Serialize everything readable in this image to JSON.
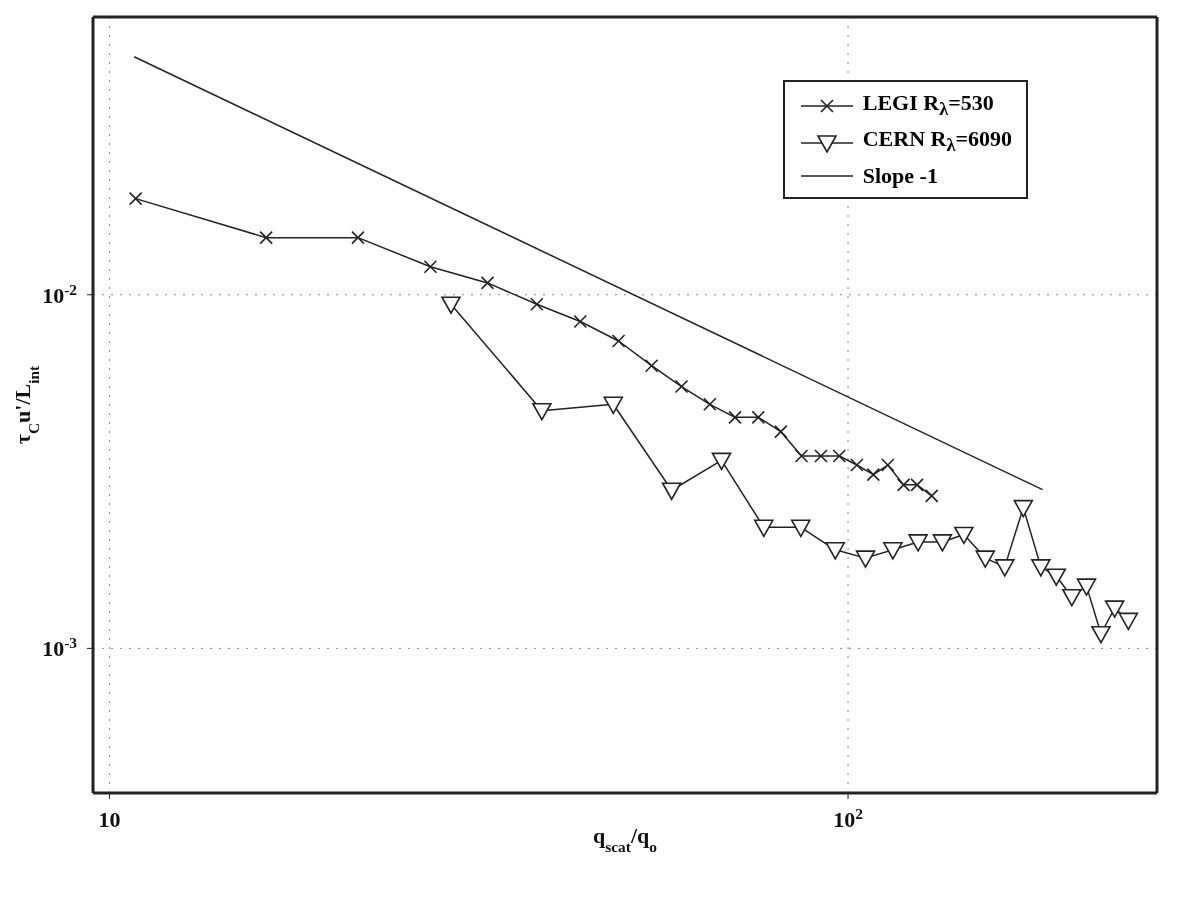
{
  "chart_data": {
    "type": "line",
    "xlabel": "q$_{scat}$/q$_{o}$",
    "ylabel": "τ$_{C}$u'/L$_{int}$",
    "log": "xy",
    "grid": true,
    "legend": "top right",
    "line_style": "solid",
    "xlim": [
      9.5,
      262
    ],
    "ylim": [
      0.00039,
      0.061
    ],
    "xticks": [
      10,
      {
        "value": 100,
        "label": "10$^{2}$"
      }
    ],
    "yticks": [
      {
        "value": 0.001,
        "label": "10$^{-3}$"
      },
      {
        "value": 0.01,
        "label": "10$^{-2}$"
      }
    ],
    "series": [
      {
        "name": "LEGI R$_{λ}$=530",
        "color": "#222222",
        "marker": "cross",
        "x": [
          10.85,
          16.3,
          21.7,
          27.2,
          32.5,
          37.9,
          43.4,
          48.9,
          54.2,
          59.5,
          65.0,
          70.3,
          75.6,
          81.1,
          86.5,
          91.9,
          97.3,
          102.8,
          108.2,
          113.2,
          118.9,
          124.0,
          129.8
        ],
        "values": [
          0.0187,
          0.0145,
          0.0145,
          0.012,
          0.0108,
          0.0094,
          0.0084,
          0.0074,
          0.0063,
          0.0055,
          0.0049,
          0.0045,
          0.0045,
          0.0041,
          0.0035,
          0.0035,
          0.0035,
          0.0033,
          0.0031,
          0.0033,
          0.0029,
          0.0029,
          0.0027
        ]
      },
      {
        "name": "CERN R$_{λ}$=6090",
        "color": "#222222",
        "marker": "triangle",
        "x": [
          29.0,
          38.5,
          48.1,
          57.7,
          67.4,
          76.9,
          86.3,
          96.1,
          105.6,
          115.0,
          124.4,
          134.2,
          143.5,
          153.4,
          163.0,
          172.7,
          182.4,
          191.4,
          200.9,
          210.3,
          220.0,
          229.6,
          239.6
        ],
        "values": [
          0.0094,
          0.0047,
          0.0049,
          0.0028,
          0.0034,
          0.0022,
          0.0022,
          0.0019,
          0.0018,
          0.0019,
          0.002,
          0.002,
          0.0021,
          0.0018,
          0.0017,
          0.0025,
          0.0017,
          0.0016,
          0.0014,
          0.0015,
          0.0011,
          0.0013,
          0.0012
        ]
      },
      {
        "name": "Slope -1",
        "color": "#222222",
        "marker": "none",
        "x": [
          10.8,
          183.4
        ],
        "values": [
          0.0471,
          0.00281
        ]
      }
    ]
  }
}
